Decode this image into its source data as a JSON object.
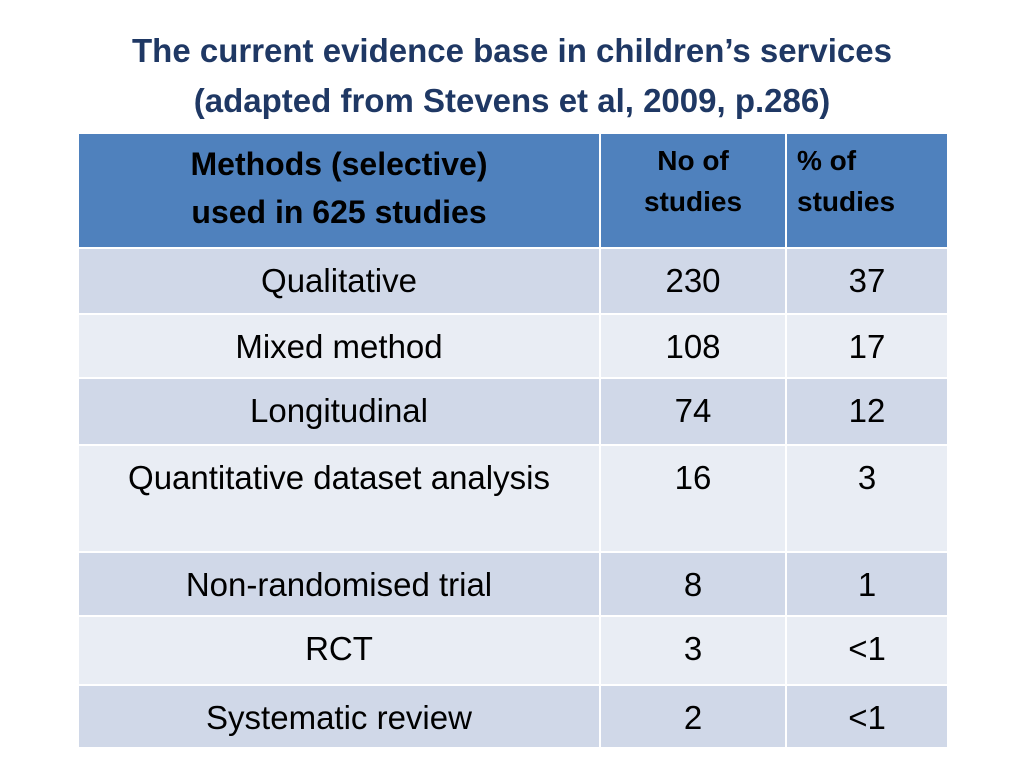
{
  "title": {
    "line1": "The current evidence base in children’s services",
    "line2": "(adapted from Stevens et al, 2009, p.286)"
  },
  "table": {
    "headers": {
      "methods_line1": "Methods (selective)",
      "methods_line2": "used in 625 studies",
      "no_line1": "No of",
      "no_line2": "studies",
      "pct_line1": "% of",
      "pct_line2": "studies"
    },
    "rows": [
      {
        "method": "Qualitative",
        "no": "230",
        "pct": "37"
      },
      {
        "method": "Mixed method",
        "no": "108",
        "pct": "17"
      },
      {
        "method": "Longitudinal",
        "no": "74",
        "pct": "12"
      },
      {
        "method": "Quantitative dataset analysis",
        "no": "16",
        "pct": "3"
      },
      {
        "method": "Non-randomised trial",
        "no": "8",
        "pct": "1"
      },
      {
        "method": "RCT",
        "no": "3",
        "pct": "<1"
      },
      {
        "method": "Systematic review",
        "no": "2",
        "pct": "<1"
      }
    ]
  },
  "colors": {
    "title": "#1f3864",
    "header_bg": "#4f81bd",
    "row_dark": "#d0d8e8",
    "row_light": "#e9edf4"
  }
}
